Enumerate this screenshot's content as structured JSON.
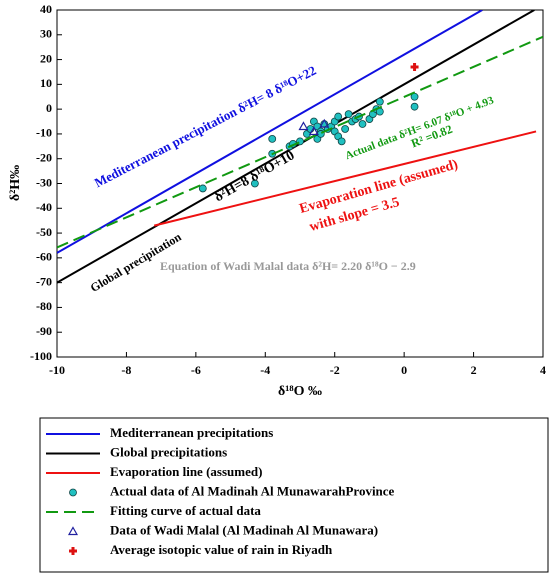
{
  "chart_data": {
    "type": "scatter",
    "x_label": "δ¹⁸O ‰",
    "y_label": "δ²H‰",
    "xlim": [
      -10,
      4
    ],
    "ylim": [
      -100,
      40
    ],
    "xticks": [
      -10,
      -8,
      -6,
      -4,
      -2,
      0,
      2,
      4
    ],
    "yticks": [
      40,
      30,
      20,
      10,
      0,
      -10,
      -20,
      -30,
      -40,
      -50,
      -60,
      -70,
      -80,
      -90,
      -100
    ],
    "grid": false,
    "series": [
      {
        "name": "Mediterranean precipitations",
        "kind": "line",
        "color": "#1010e0",
        "x": [
          -10,
          2.25
        ],
        "values": [
          -58,
          40
        ]
      },
      {
        "name": "Global precipitations",
        "kind": "line",
        "color": "#000000",
        "x": [
          -10,
          3.75
        ],
        "values": [
          -70,
          40
        ]
      },
      {
        "name": "Evaporation line (assumed)",
        "kind": "line",
        "color": "#ee1111",
        "x": [
          -7.2,
          3.8
        ],
        "values": [
          -47,
          -9
        ]
      },
      {
        "name": "Actual data of Al Madinah Al MunawarahProvince",
        "kind": "circle",
        "color": "#20c0c0",
        "x": [
          -5.8,
          -4.3,
          -3.8,
          -3.8,
          -3.3,
          -3.2,
          -3.0,
          -2.8,
          -2.7,
          -2.6,
          -2.5,
          -2.5,
          -2.4,
          -2.4,
          -2.3,
          -2.2,
          -2.1,
          -2.0,
          -2.0,
          -1.9,
          -1.9,
          -1.8,
          -1.7,
          -1.6,
          -1.5,
          -1.4,
          -1.3,
          -1.2,
          -1.0,
          -0.9,
          -0.8,
          -0.7,
          -0.7,
          0.3,
          0.3
        ],
        "values": [
          -32,
          -30,
          -12,
          -18,
          -15,
          -14,
          -13,
          -10,
          -8,
          -5,
          -7,
          -12,
          -9,
          -10,
          -6,
          -8,
          -7,
          -5,
          -9,
          -3,
          -11,
          -13,
          -8,
          -2,
          -5,
          -4,
          -3,
          -6,
          -4,
          -2,
          0,
          3,
          -1,
          5,
          1
        ]
      },
      {
        "name": "Fitting curve of actual data",
        "kind": "dashed",
        "color": "#119911",
        "x": [
          -10,
          4
        ],
        "values": [
          -55.8,
          29.2
        ]
      },
      {
        "name": "Data of Wadi Malal (Al Madinah Al Munawara)",
        "kind": "triangle",
        "color": "#2020a0",
        "x": [
          -2.9,
          -2.6,
          -2.3
        ],
        "values": [
          -7,
          -9,
          -6
        ]
      },
      {
        "name": "Average isotopic value of rain in Riyadh",
        "kind": "plus",
        "color": "#dd1111",
        "x": [
          0.3
        ],
        "values": [
          17
        ]
      }
    ],
    "annotations": [
      {
        "text": "Mediterranean precipitation  δ²H= 8 δ¹⁸O+22",
        "color": "#1010e0"
      },
      {
        "text": "δ²H=8 δ¹⁸O+10",
        "color": "#000000"
      },
      {
        "text": "Global precipitation",
        "color": "#000000"
      },
      {
        "text": "Actual data δ²H= 6.07 δ¹⁸O + 4.93",
        "color": "#119911"
      },
      {
        "text": "R² =0.82",
        "color": "#119911"
      },
      {
        "text": "Evaporation line (assumed)",
        "color": "#ee1111"
      },
      {
        "text": "with slope = 3.5",
        "color": "#ee1111"
      },
      {
        "text": "Equation of Wadi Malal data δ²H= 2.20 δ¹⁸O − 2.9",
        "color": "#999999"
      }
    ]
  }
}
